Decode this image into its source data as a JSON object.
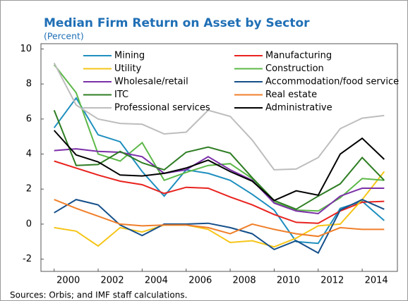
{
  "chart_data": {
    "type": "line",
    "title": "Median Firm Return on Asset by Sector",
    "subtitle": "(Percent)",
    "note": "Sources: Orbis; and IMF staff calculations.",
    "x": [
      2000,
      2001,
      2002,
      2003,
      2004,
      2005,
      2006,
      2007,
      2008,
      2009,
      2010,
      2011,
      2012,
      2013,
      2014,
      2015
    ],
    "xlim": [
      1999.4,
      2015.6
    ],
    "xticks": [
      2000,
      2002,
      2004,
      2006,
      2008,
      2010,
      2012,
      2014
    ],
    "ylim": [
      -2.7,
      10.3
    ],
    "yticks": [
      -2,
      0,
      2,
      4,
      6,
      8,
      10
    ],
    "grid": false,
    "legend": "top",
    "series": [
      {
        "name": "Mining",
        "color": "#1f8fbf",
        "values": [
          5.5,
          7.2,
          5.1,
          4.7,
          3.0,
          1.6,
          3.1,
          2.9,
          2.5,
          1.7,
          0.8,
          -1.0,
          -1.1,
          0.9,
          1.3,
          0.2
        ]
      },
      {
        "name": "Manufacturing",
        "color": "#e8231f",
        "values": [
          3.6,
          3.2,
          2.8,
          2.45,
          2.25,
          1.75,
          2.1,
          2.05,
          1.55,
          1.1,
          0.55,
          0.1,
          0.05,
          0.75,
          1.25,
          1.3
        ]
      },
      {
        "name": "Utility",
        "color": "#f5c518",
        "values": [
          -0.2,
          -0.4,
          -1.25,
          -0.2,
          -0.45,
          -0.05,
          -0.05,
          -0.3,
          -1.05,
          -0.95,
          -1.3,
          -0.8,
          -0.1,
          0.0,
          1.4,
          3.0
        ]
      },
      {
        "name": "Construction",
        "color": "#5cb848",
        "values": [
          9.1,
          7.5,
          4.0,
          3.6,
          4.65,
          2.5,
          2.95,
          3.35,
          3.45,
          2.6,
          1.25,
          0.8,
          0.75,
          1.5,
          2.6,
          2.5
        ]
      },
      {
        "name": "Wholesale/retail",
        "color": "#7b2fa8",
        "values": [
          4.2,
          4.3,
          4.15,
          4.1,
          3.85,
          2.9,
          3.1,
          3.85,
          3.1,
          2.5,
          1.2,
          0.75,
          0.6,
          1.6,
          2.05,
          2.05
        ]
      },
      {
        "name": "Accommodation/food service",
        "color": "#154f8a",
        "values": [
          0.65,
          1.4,
          1.1,
          -0.05,
          -0.65,
          0.0,
          0.0,
          0.05,
          -0.2,
          -0.55,
          -1.45,
          -0.95,
          -1.65,
          0.8,
          1.4,
          0.85
        ]
      },
      {
        "name": "ITC",
        "color": "#2e7d23",
        "values": [
          6.5,
          3.35,
          3.4,
          4.15,
          3.5,
          3.1,
          4.1,
          4.4,
          4.05,
          2.65,
          1.35,
          0.85,
          1.6,
          2.3,
          3.8,
          2.5
        ]
      },
      {
        "name": "Real estate",
        "color": "#f07f2a",
        "values": [
          1.4,
          0.9,
          0.45,
          0.0,
          -0.1,
          -0.05,
          -0.05,
          -0.2,
          -0.55,
          0.0,
          -0.3,
          -0.55,
          -0.7,
          -0.2,
          -0.3,
          -0.3
        ]
      },
      {
        "name": "Professional services",
        "color": "#bdbdbd",
        "values": [
          9.2,
          6.8,
          6.0,
          5.75,
          5.7,
          5.15,
          5.25,
          6.5,
          6.15,
          4.8,
          3.1,
          3.15,
          3.8,
          5.45,
          6.05,
          6.2
        ]
      },
      {
        "name": "Administrative",
        "color": "#000000",
        "values": [
          5.35,
          3.95,
          3.55,
          2.8,
          2.75,
          2.9,
          3.2,
          3.65,
          3.0,
          2.45,
          1.35,
          1.9,
          1.65,
          4.0,
          4.9,
          3.7
        ]
      }
    ]
  }
}
